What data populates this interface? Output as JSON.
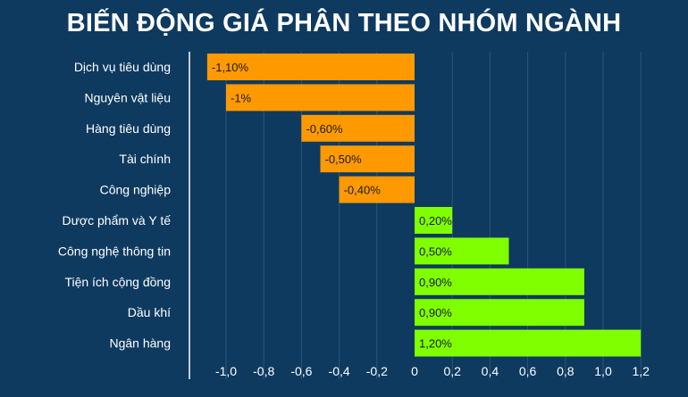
{
  "title": "BIẾN ĐỘNG GIÁ PHÂN THEO NHÓM NGÀNH",
  "chart_data": {
    "type": "bar",
    "orientation": "horizontal",
    "title": "BIẾN ĐỘNG GIÁ PHÂN THEO NHÓM NGÀNH",
    "categories": [
      "Dịch vụ tiêu dùng",
      "Nguyên vật liệu",
      "Hàng tiêu dùng",
      "Tài chính",
      "Công nghiệp",
      "Dược phẩm và Y tế",
      "Công nghệ thông tin",
      "Tiện ích cộng đồng",
      "Dầu khí",
      "Ngân hàng"
    ],
    "values": [
      -1.1,
      -1.0,
      -0.6,
      -0.5,
      -0.4,
      0.2,
      0.5,
      0.9,
      0.9,
      1.2
    ],
    "data_labels": [
      "-1,10%",
      "-1%",
      "-0,60%",
      "-0,50%",
      "-0,40%",
      "0,20%",
      "0,50%",
      "0,90%",
      "0,90%",
      "1,20%"
    ],
    "xlim": [
      -1.2,
      1.3
    ],
    "x_ticks": [
      -1.0,
      -0.8,
      -0.6,
      -0.4,
      -0.2,
      0,
      0.2,
      0.4,
      0.6,
      0.8,
      1.0,
      1.2
    ],
    "x_tick_labels": [
      "-1,0",
      "-0,8",
      "-0,6",
      "-0,4",
      "-0,2",
      "0",
      "0,2",
      "0,4",
      "0,6",
      "0,8",
      "1,0",
      "1,2"
    ],
    "xlabel": "",
    "ylabel": "",
    "grid": "vertical",
    "colors": {
      "negative": "#ff9900",
      "positive": "#80ff00",
      "background": "#0e3a5f",
      "grid": "#2d5578",
      "text": "#ffffff"
    }
  }
}
